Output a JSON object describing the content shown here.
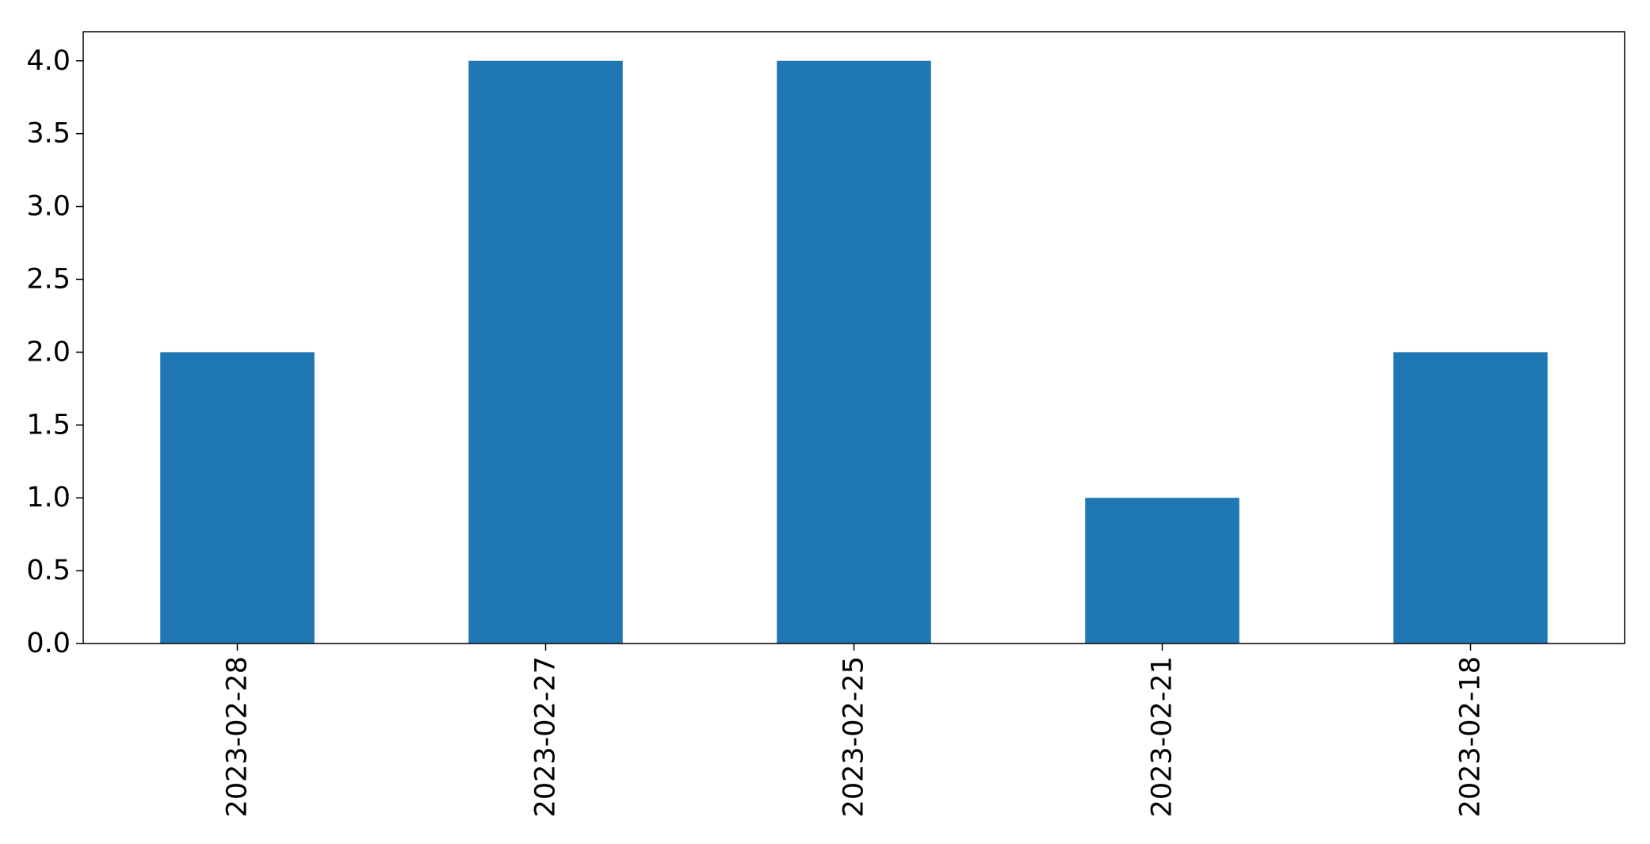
{
  "chart_data": {
    "type": "bar",
    "title": "",
    "xlabel": "",
    "ylabel": "",
    "categories": [
      "2023-02-28",
      "2023-02-27",
      "2023-02-25",
      "2023-02-21",
      "2023-02-18"
    ],
    "series": [
      {
        "values": [
          2,
          4,
          4,
          1,
          2
        ],
        "color": "#1f77b4"
      }
    ],
    "ylim": [
      0,
      4.2
    ],
    "yticks": [
      0.0,
      0.5,
      1.0,
      1.5,
      2.0,
      2.5,
      3.0,
      3.5,
      4.0
    ],
    "ytick_labels": [
      "0.0",
      "0.5",
      "1.0",
      "1.5",
      "2.0",
      "2.5",
      "3.0",
      "3.5",
      "4.0"
    ],
    "grid": false,
    "legend": "none",
    "x_tick_rotation": "vertical"
  }
}
